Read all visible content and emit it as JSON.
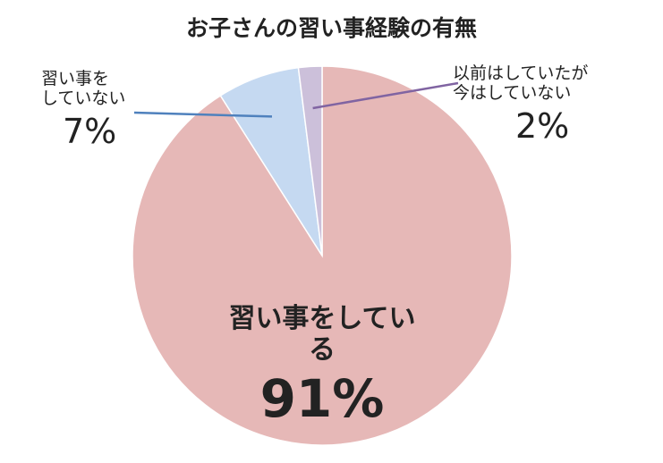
{
  "chart_data": {
    "type": "pie",
    "title": "お子さんの習い事経験の有無",
    "slices": [
      {
        "label": "習い事をしている",
        "value": 91,
        "display": "91%",
        "color": "#e6b8b7"
      },
      {
        "label": "習い事をしていない",
        "label_lines": [
          "習い事を",
          "していない"
        ],
        "value": 7,
        "display": "7%",
        "color": "#c5d9f1"
      },
      {
        "label": "以前はしていたが今はしていない",
        "label_lines": [
          "以前はしていたが",
          "今はしていない"
        ],
        "value": 2,
        "display": "2%",
        "color": "#ccc0da"
      }
    ],
    "leader_colors": [
      "#4f81bd",
      "#8064a2"
    ]
  }
}
